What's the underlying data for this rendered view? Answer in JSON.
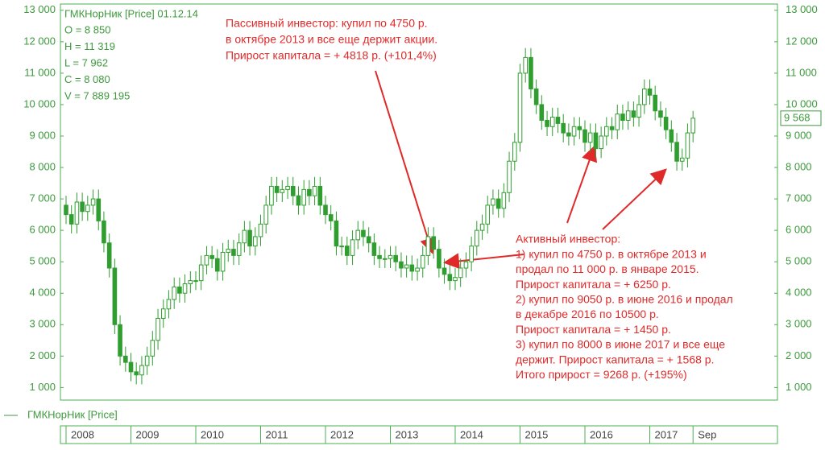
{
  "chart_data": {
    "type": "candlestick",
    "header": "ГМКНорНик [Price] 01.12.14",
    "ohlc_lines": [
      "O = 8 850",
      "H = 11 319",
      "L = 7 962",
      "C = 8 080",
      "V = 7 889 195"
    ],
    "legend_name": "ГМКНорНик [Price]",
    "color": "#2f9e2f",
    "x": [
      2008,
      2008.083,
      2008.167,
      2008.25,
      2008.333,
      2008.417,
      2008.5,
      2008.583,
      2008.667,
      2008.75,
      2008.833,
      2008.917,
      2009,
      2009.083,
      2009.167,
      2009.25,
      2009.333,
      2009.417,
      2009.5,
      2009.583,
      2009.667,
      2009.75,
      2009.833,
      2009.917,
      2010,
      2010.083,
      2010.167,
      2010.25,
      2010.333,
      2010.417,
      2010.5,
      2010.583,
      2010.667,
      2010.75,
      2010.833,
      2010.917,
      2011,
      2011.083,
      2011.167,
      2011.25,
      2011.333,
      2011.417,
      2011.5,
      2011.583,
      2011.667,
      2011.75,
      2011.833,
      2011.917,
      2012,
      2012.083,
      2012.167,
      2012.25,
      2012.333,
      2012.417,
      2012.5,
      2012.583,
      2012.667,
      2012.75,
      2012.833,
      2012.917,
      2013,
      2013.083,
      2013.167,
      2013.25,
      2013.333,
      2013.417,
      2013.5,
      2013.583,
      2013.667,
      2013.75,
      2013.833,
      2013.917,
      2014,
      2014.083,
      2014.167,
      2014.25,
      2014.333,
      2014.417,
      2014.5,
      2014.583,
      2014.667,
      2014.75,
      2014.833,
      2014.917,
      2015,
      2015.083,
      2015.167,
      2015.25,
      2015.333,
      2015.417,
      2015.5,
      2015.583,
      2015.667,
      2015.75,
      2015.833,
      2015.917,
      2016,
      2016.083,
      2016.167,
      2016.25,
      2016.333,
      2016.417,
      2016.5,
      2016.583,
      2016.667,
      2016.75,
      2016.833,
      2016.917,
      2017,
      2017.083,
      2017.167,
      2017.25,
      2017.333,
      2017.417,
      2017.5,
      2017.583,
      2017.667
    ],
    "open": [
      6800,
      6500,
      6200,
      6900,
      6600,
      6800,
      7000,
      6300,
      5600,
      4800,
      3000,
      2000,
      1800,
      1500,
      1400,
      1700,
      2000,
      2500,
      3200,
      3500,
      3800,
      4200,
      4000,
      4300,
      4400,
      4400,
      4900,
      5200,
      5100,
      4700,
      5300,
      5400,
      5200,
      5600,
      6000,
      5500,
      5800,
      6200,
      6800,
      7400,
      7200,
      7300,
      7400,
      7100,
      6800,
      7300,
      7100,
      7400,
      6800,
      6500,
      6300,
      5500,
      5500,
      5200,
      5700,
      6000,
      5800,
      5600,
      5200,
      5100,
      5100,
      5200,
      5000,
      4800,
      4900,
      4700,
      4800,
      5200,
      5800,
      5400,
      4800,
      4600,
      4400,
      4500,
      4800,
      5000,
      5500,
      6000,
      6200,
      6800,
      7000,
      6700,
      7200,
      8200,
      8800,
      11000,
      11500,
      10500,
      10000,
      9500,
      9300,
      9600,
      9400,
      9100,
      9000,
      9300,
      9200,
      8800,
      9100,
      8600,
      9000,
      9300,
      9200,
      9700,
      9500,
      9800,
      9600,
      10000,
      10500,
      10300,
      9800,
      9600,
      9200,
      8800,
      8200,
      8300,
      9100
    ],
    "high": [
      7100,
      6800,
      7200,
      7200,
      7100,
      7300,
      7300,
      6600,
      5900,
      5100,
      3300,
      2300,
      2100,
      1800,
      2000,
      2300,
      2800,
      3500,
      3800,
      4100,
      4500,
      4500,
      4600,
      4700,
      4700,
      5200,
      5500,
      5500,
      5400,
      5600,
      5700,
      5700,
      5900,
      6300,
      6300,
      6100,
      6500,
      7100,
      7700,
      7700,
      7600,
      7700,
      7700,
      7400,
      7600,
      7600,
      7700,
      7700,
      7100,
      6800,
      6600,
      5800,
      5800,
      6000,
      6300,
      6300,
      6100,
      5900,
      5500,
      5400,
      5500,
      5500,
      5300,
      5200,
      5200,
      5100,
      5500,
      6100,
      6100,
      5700,
      5100,
      4900,
      4800,
      5100,
      5300,
      5800,
      6300,
      6500,
      7100,
      7300,
      7300,
      7500,
      8500,
      9100,
      11300,
      11800,
      11800,
      10800,
      10300,
      9800,
      9900,
      9900,
      9700,
      9400,
      9600,
      9600,
      9500,
      9400,
      9400,
      9300,
      9600,
      9600,
      10000,
      10000,
      10100,
      10100,
      10300,
      10800,
      10800,
      10600,
      10100,
      9900,
      9500,
      9100,
      8600,
      9400,
      9800
    ],
    "low": [
      6200,
      5900,
      5900,
      6300,
      6300,
      6500,
      6000,
      5300,
      4500,
      2700,
      1700,
      1500,
      1200,
      1100,
      1100,
      1400,
      1700,
      2200,
      2900,
      3200,
      3500,
      3700,
      3700,
      4000,
      4100,
      4100,
      4600,
      4800,
      4400,
      4400,
      5000,
      4900,
      4900,
      5300,
      5200,
      5200,
      5500,
      5900,
      6500,
      6900,
      6900,
      7000,
      6800,
      6500,
      6500,
      6800,
      6800,
      6500,
      6200,
      6000,
      5200,
      5200,
      4900,
      4900,
      5400,
      5500,
      5300,
      4900,
      4800,
      4800,
      4800,
      4700,
      4500,
      4500,
      4400,
      4400,
      4500,
      4900,
      5100,
      4500,
      4300,
      4100,
      4100,
      4200,
      4500,
      4700,
      5200,
      5700,
      5900,
      6500,
      6400,
      6400,
      6900,
      7900,
      8500,
      10700,
      10200,
      9700,
      9200,
      9000,
      9000,
      9100,
      8800,
      8700,
      8700,
      8900,
      8500,
      8500,
      8300,
      8300,
      8700,
      8900,
      8900,
      9200,
      9200,
      9300,
      9300,
      9700,
      10000,
      9500,
      9300,
      8900,
      8500,
      7900,
      7900,
      8000,
      8800
    ],
    "close": [
      6500,
      6200,
      6900,
      6600,
      6800,
      7000,
      6300,
      5600,
      4800,
      3000,
      2000,
      1800,
      1500,
      1400,
      1700,
      2000,
      2500,
      3200,
      3500,
      3800,
      4200,
      4000,
      4300,
      4400,
      4400,
      4900,
      5200,
      5100,
      4700,
      5300,
      5400,
      5200,
      5600,
      6000,
      5500,
      5800,
      6200,
      6800,
      7400,
      7200,
      7300,
      7400,
      7100,
      6800,
      7300,
      7100,
      7400,
      6800,
      6500,
      6300,
      5500,
      5500,
      5200,
      5700,
      6000,
      5800,
      5600,
      5200,
      5100,
      5100,
      5200,
      5000,
      4800,
      4900,
      4700,
      4800,
      5200,
      5800,
      5400,
      4800,
      4600,
      4400,
      4500,
      4800,
      5000,
      5500,
      6000,
      6200,
      6800,
      7000,
      6700,
      7200,
      8200,
      8800,
      11000,
      11500,
      10500,
      10000,
      9500,
      9300,
      9600,
      9400,
      9100,
      9000,
      9300,
      9200,
      8800,
      9100,
      8600,
      9000,
      9300,
      9200,
      9700,
      9500,
      9800,
      9600,
      10000,
      10500,
      10300,
      9800,
      9600,
      9200,
      8800,
      8200,
      8300,
      9100,
      9568
    ],
    "last_price": {
      "value": 9568,
      "label": "9 568"
    },
    "ylim": [
      600,
      13200
    ],
    "yticks": [
      {
        "value": 1000,
        "label": "1 000"
      },
      {
        "value": 2000,
        "label": "2 000"
      },
      {
        "value": 3000,
        "label": "3 000"
      },
      {
        "value": 4000,
        "label": "4 000"
      },
      {
        "value": 5000,
        "label": "5 000"
      },
      {
        "value": 6000,
        "label": "6 000"
      },
      {
        "value": 7000,
        "label": "7 000"
      },
      {
        "value": 8000,
        "label": "8 000"
      },
      {
        "value": 9000,
        "label": "9 000"
      },
      {
        "value": 10000,
        "label": "10 000"
      },
      {
        "value": 11000,
        "label": "11 000"
      },
      {
        "value": 12000,
        "label": "12 000"
      },
      {
        "value": 13000,
        "label": "13 000"
      }
    ],
    "xlim": [
      2007.913,
      2018.969
    ],
    "xticks": [
      2008,
      2009,
      2010,
      2011,
      2012,
      2013,
      2014,
      2015,
      2016,
      2017,
      {
        "value": 2017.667,
        "label": "Sep"
      }
    ],
    "annotations": [
      [
        "Пассивный инвестор: купил по 4750 р.",
        "в октябре 2013 и все еще держит акции.",
        "Прирост капитала = + 4818 р. (+101,4%)"
      ],
      [
        "Активный инвестор:",
        "1) купил по 4750 р. в октябре 2013 и",
        "продал по 11 000 р. в январе 2015.",
        "Прирост капитала = + 6250 р.",
        "2) купил по 9050 р. в июне 2016 и продал",
        "в декабре 2016 по 10500 р.",
        "Прирост капитала = + 1450 р.",
        "3) купил по 8000 в июне 2017 и все еще",
        "держит. Прирост капитала = + 1568 р.",
        "Итого прирост = 9268 р. (+195%)"
      ]
    ]
  }
}
